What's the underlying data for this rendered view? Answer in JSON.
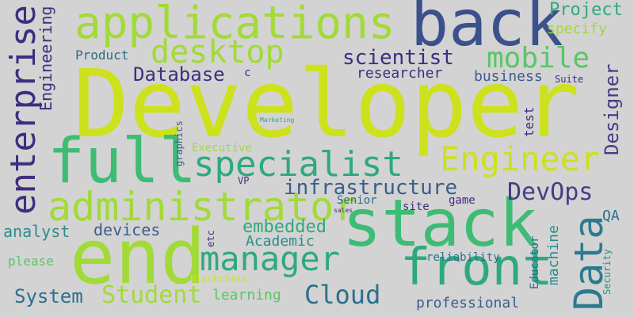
{
  "words": [
    {
      "text": "Developer",
      "color": "#cde11d"
    },
    {
      "text": "stack",
      "color": "#3dbc74"
    },
    {
      "text": "end",
      "color": "#a2da37"
    },
    {
      "text": "full",
      "color": "#3dbc74"
    },
    {
      "text": "back",
      "color": "#3b518b"
    },
    {
      "text": "front",
      "color": "#2ea97e"
    },
    {
      "text": "applications",
      "color": "#a2da37"
    },
    {
      "text": "administrator",
      "color": "#a2da37"
    },
    {
      "text": "enterprise",
      "color": "#3f2d81"
    },
    {
      "text": "Data",
      "color": "#2b7b8e"
    },
    {
      "text": "specialist",
      "color": "#2ea97e"
    },
    {
      "text": "Engineer",
      "color": "#cde11d"
    },
    {
      "text": "manager",
      "color": "#2ea97e"
    },
    {
      "text": "desktop",
      "color": "#a2da37"
    },
    {
      "text": "mobile",
      "color": "#58c765"
    },
    {
      "text": "DevOps",
      "color": "#433d84"
    },
    {
      "text": "Cloud",
      "color": "#2a6f8e"
    },
    {
      "text": "Student",
      "color": "#a2da37"
    },
    {
      "text": "infrastructure",
      "color": "#3a5e8c"
    },
    {
      "text": "scientist",
      "color": "#3f2d81"
    },
    {
      "text": "Database",
      "color": "#3f2d81"
    },
    {
      "text": "System",
      "color": "#2a6f8e"
    },
    {
      "text": "Project",
      "color": "#2ea97e"
    },
    {
      "text": "Designer",
      "color": "#433d84"
    },
    {
      "text": "embedded",
      "color": "#2ea97e"
    },
    {
      "text": "devices",
      "color": "#3a5e8c"
    },
    {
      "text": "analyst",
      "color": "#2a8c8c"
    },
    {
      "text": "Engineering",
      "color": "#3f2d81"
    },
    {
      "text": "Academic",
      "color": "#2a8c8c"
    },
    {
      "text": "learning",
      "color": "#58c765"
    },
    {
      "text": "researcher",
      "color": "#3f2d81"
    },
    {
      "text": "machine",
      "color": "#2a8c8c"
    },
    {
      "text": "business",
      "color": "#3a5e8c"
    },
    {
      "text": "professional",
      "color": "#3a5e8c"
    },
    {
      "text": "specify",
      "color": "#a2da37"
    },
    {
      "text": "Product",
      "color": "#2a6f8e"
    },
    {
      "text": "please",
      "color": "#58c765"
    },
    {
      "text": "reliability",
      "color": "#2a6f8e"
    },
    {
      "text": "test",
      "color": "#3f2d81"
    },
    {
      "text": "Educator",
      "color": "#2a6f8e"
    },
    {
      "text": "Security",
      "color": "#2a8c8c"
    },
    {
      "text": "QA",
      "color": "#2a6f8e"
    },
    {
      "text": "VP",
      "color": "#3f2d81"
    },
    {
      "text": "Senior",
      "color": "#2a6f8e"
    },
    {
      "text": "site",
      "color": "#3f2d81"
    },
    {
      "text": "game",
      "color": "#3f2d81"
    },
    {
      "text": "Suite",
      "color": "#3f2d81"
    },
    {
      "text": "graphics",
      "color": "#3a5e8c"
    },
    {
      "text": "Executive",
      "color": "#a2da37"
    },
    {
      "text": "etc",
      "color": "#3f2d81"
    },
    {
      "text": "c",
      "color": "#3f2d81"
    },
    {
      "text": "Blockchain",
      "color": "#cde11d"
    },
    {
      "text": "Marketing",
      "color": "#2ea97e"
    },
    {
      "text": "sales",
      "color": "#3f2d81"
    }
  ]
}
